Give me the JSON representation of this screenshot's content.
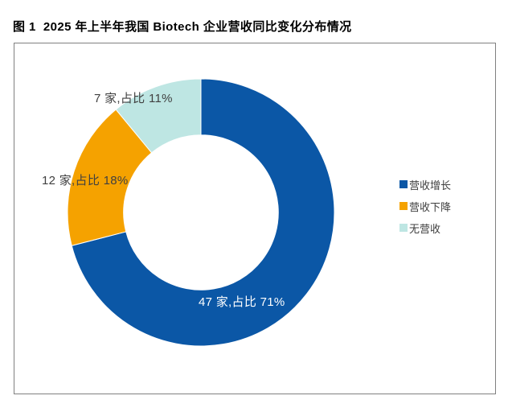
{
  "figure": {
    "title": "图 1  2025 年上半年我国 Biotech 企业营收同比变化分布情况"
  },
  "chart_data": {
    "type": "pie",
    "subtype": "donut",
    "title": "2025 年上半年我国 Biotech 企业营收同比变化分布情况",
    "unit": "家",
    "direction": "clockwise",
    "start_angle_deg": 0,
    "legend_position": "right",
    "hole_ratio": 0.58,
    "background": "#ffffff",
    "frame_border_color": "#808080",
    "slices": [
      {
        "label": "营收增长",
        "count": 47,
        "percent": 71,
        "color": "#0B57A6",
        "data_label": "47 家,占比 71%",
        "data_label_color": "#FFFFFF"
      },
      {
        "label": "营收下降",
        "count": 12,
        "percent": 18,
        "color": "#F5A200",
        "data_label": "12 家,占比 18%",
        "data_label_color": "#404040"
      },
      {
        "label": "无营收",
        "count": 7,
        "percent": 11,
        "color": "#BEE6E3",
        "data_label": "7 家,占比 11%",
        "data_label_color": "#404040"
      }
    ]
  }
}
